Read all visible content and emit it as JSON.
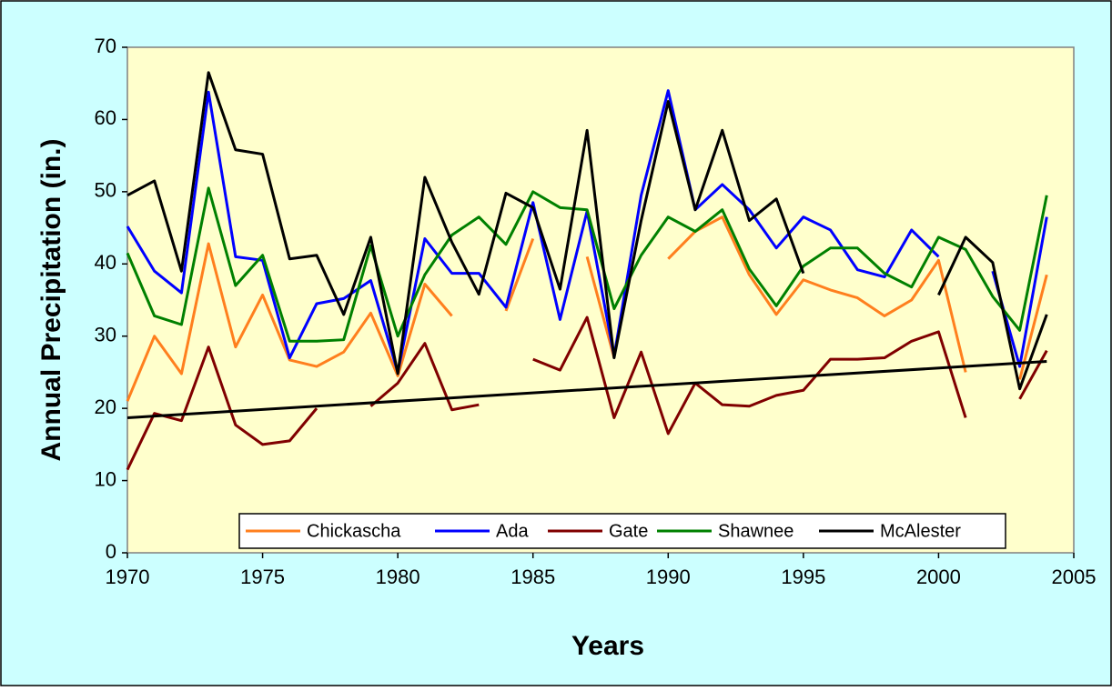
{
  "chart_data": {
    "type": "line",
    "x_label": "Years",
    "y_label": "Annual Precipitation (in.)",
    "x": [
      1970,
      1971,
      1972,
      1973,
      1974,
      1975,
      1976,
      1977,
      1978,
      1979,
      1980,
      1981,
      1982,
      1983,
      1984,
      1985,
      1986,
      1987,
      1988,
      1989,
      1990,
      1991,
      1992,
      1993,
      1994,
      1995,
      1996,
      1997,
      1998,
      1999,
      2000,
      2001,
      2002,
      2003,
      2004
    ],
    "series": [
      {
        "name": "Chickascha",
        "color": "#ff7f1e",
        "values": [
          21,
          30,
          24.8,
          42.8,
          28.5,
          35.7,
          26.7,
          25.8,
          27.8,
          33.2,
          24.5,
          37.2,
          32.8,
          null,
          33.5,
          43.5,
          null,
          41,
          27,
          null,
          40.7,
          44.5,
          46.5,
          38.5,
          33,
          37.8,
          36.4,
          35.3,
          32.8,
          35,
          40.5,
          25,
          null,
          24,
          38.5
        ]
      },
      {
        "name": "Ada",
        "color": "#0000ff",
        "values": [
          45.2,
          39,
          36,
          63.8,
          41,
          40.5,
          27,
          34.5,
          35.2,
          37.7,
          25,
          43.5,
          38.7,
          38.7,
          34,
          48.5,
          32.3,
          47.3,
          27.2,
          49.5,
          64,
          47.5,
          51,
          47.5,
          42.2,
          46.5,
          44.7,
          39.2,
          38.2,
          44.7,
          41,
          null,
          39,
          25.8,
          46.5
        ]
      },
      {
        "name": "Gate",
        "color": "#800000",
        "values": [
          11.5,
          19.3,
          18.3,
          28.5,
          17.7,
          15,
          15.5,
          20,
          null,
          20.3,
          23.5,
          29,
          19.8,
          20.5,
          null,
          26.8,
          25.3,
          32.6,
          18.7,
          27.8,
          16.5,
          23.5,
          20.5,
          20.3,
          21.8,
          22.5,
          26.8,
          26.8,
          27,
          29.3,
          30.6,
          18.7,
          null,
          21.3,
          28
        ]
      },
      {
        "name": "Shawnee",
        "color": "#008000",
        "values": [
          41.5,
          32.8,
          31.6,
          50.5,
          37,
          41.2,
          29.3,
          29.3,
          29.5,
          42.5,
          30,
          38.5,
          44,
          46.5,
          42.7,
          50,
          47.8,
          47.5,
          33.8,
          41.2,
          46.5,
          44.5,
          47.5,
          39.3,
          34.2,
          39.7,
          42.2,
          42.2,
          38.7,
          36.8,
          43.7,
          42,
          35.5,
          30.8,
          49.5
        ]
      },
      {
        "name": "McAlester",
        "color": "#000000",
        "values": [
          49.5,
          51.5,
          39,
          66.5,
          55.8,
          55.2,
          40.7,
          41.2,
          33,
          43.7,
          24.8,
          52,
          43,
          35.8,
          49.8,
          47.8,
          36.5,
          58.5,
          27,
          46,
          62.5,
          47.5,
          58.5,
          46,
          49,
          38.7,
          null,
          null,
          null,
          null,
          35.7,
          43.7,
          40.2,
          22.7,
          33
        ]
      }
    ],
    "trend": {
      "x": [
        1970,
        2004
      ],
      "values": [
        18.7,
        26.5
      ],
      "color": "#000000"
    },
    "xlim": [
      1970,
      2005
    ],
    "xticks": [
      1970,
      1975,
      1980,
      1985,
      1990,
      1995,
      2000,
      2005
    ],
    "ylim": [
      0,
      70
    ],
    "yticks": [
      0,
      10,
      20,
      30,
      40,
      50,
      60,
      70
    ],
    "background": "#ccffff",
    "plot_background": "#ffffcc"
  }
}
